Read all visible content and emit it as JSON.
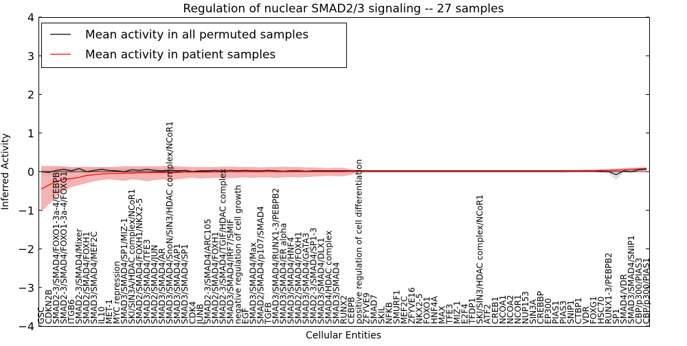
{
  "chart_data": {
    "type": "line",
    "title": "Regulation of nuclear SMAD2/3 signaling -- 27 samples",
    "xlabel": "Cellular Entities",
    "ylabel": "Inferred Activity",
    "ylim": [
      -4,
      4
    ],
    "yticks": [
      -4,
      -3,
      -2,
      -1,
      0,
      1,
      2,
      3,
      4
    ],
    "ytick_labels": [
      "−4",
      "−3",
      "−2",
      "−1",
      "0",
      "1",
      "2",
      "3",
      "4"
    ],
    "legend_position": "upper-left",
    "colors": {
      "permuted": "#000000",
      "patient": "#ff0000",
      "patient_band": "#f08080",
      "permuted_band": "#bbbbbb"
    },
    "categories": [
      "GSC",
      "CDKN2B",
      "SMAD2-3/SMAD4/FOXO1-3a-4/CEBPB",
      "SMAD2-3/SMAD4/FOXO1-3a-4/FOXG1",
      "ITGB6",
      "SMAD2-3/SMAD4/Mixer",
      "SMAD2/SMAD4/FOXH1",
      "SMAD3/SMAD4/MEF2C",
      "IL10",
      "MET-1",
      "MYC repression",
      "SMAD3/SMAD4/SP1/MIZ-1",
      "SKI/SIN3A/HDAC complex/NCoR1",
      "SMAD2/SMAD4/FOXH1/NKX2-5",
      "SMAD3/SMAD4/TFE3",
      "SMAD2/SMAD4/JUN",
      "SMAD3/SMAD4/AR",
      "SMAD3/SMAD4/SnoN/SIN3/HDAC complex/NCoR1",
      "SMAD3/SMAD4/AP1",
      "SMAD3/SMAD4/SP1",
      "CDK4",
      "JUNB",
      "SMAD2-3/SMAD4/ARC105",
      "SMAD2/SMAD4/FOXH1",
      "SMAD2-3/SMAD4/TGIF/HDAC complex",
      "SMAD3/SMAD4/IRF7/SMIF",
      "negative regulation of cell growth",
      "EGF",
      "SMAD3/SMAD4/Max",
      "SMAD2/SMAD4/p107/SMAD4",
      "TGFB",
      "SMAD3/SMAD4/RUNX1-3/PEBPB2",
      "SMAD3/SMAD4/ER alpha",
      "SMAD3/SMAD4/HNF4",
      "SMAD2/SMAD4/FOXH1",
      "SMAD3/SMAD4/GATA3",
      "SMAD2-3/SMAD4/SP1-3",
      "SMAD3/SMAD4/DLX1",
      "SMAD4/HDAC complex",
      "SMAD3/SMAD4",
      "RUNX2",
      "CEBPB",
      "positive regulation of cell differentiation",
      "ZFYVE9",
      "SMAD7",
      "SKIL",
      "NFKB",
      "SMURF1",
      "MEF2C",
      "ZFYVE16",
      "NKX2-5",
      "FOXO1",
      "HNF4A",
      "MAX",
      "TFE3",
      "MIZ-1",
      "E2F4",
      "TFDP1",
      "SKI/SIN3/HDAC complex/NCoR1",
      "ATF2",
      "CREB1",
      "NCOA1",
      "NCOA2",
      "NCOR1",
      "NUP153",
      "SIN3A",
      "CREBBP",
      "EP300",
      "PIAS1",
      "PIAS3",
      "SNIP1",
      "CTBP1",
      "VDR",
      "FOXG1",
      "HSC70",
      "RUNX1-3/PEBPB2",
      "SP1",
      "SMAD4/VDR",
      "SMAD3/SMAD4/SNIP1",
      "CBP/p300/PIAS3",
      "CBP/p300/PIAS1"
    ],
    "series": [
      {
        "name": "Mean activity in all permuted samples",
        "values": [
          0.0,
          -0.02,
          0.03,
          0.06,
          0.02,
          0.08,
          0.0,
          0.03,
          0.06,
          0.03,
          0.02,
          0.0,
          0.05,
          0.03,
          0.06,
          0.03,
          0.02,
          0.04,
          0.02,
          0.03,
          0.0,
          0.02,
          0.02,
          0.03,
          0.01,
          0.03,
          0.02,
          0.03,
          0.02,
          0.02,
          0.03,
          0.02,
          0.01,
          0.02,
          0.02,
          0.01,
          0.02,
          0.02,
          0.02,
          0.02,
          0.02,
          0.02,
          0.02,
          0.02,
          0.02,
          0.02,
          0.02,
          0.02,
          0.02,
          0.02,
          0.02,
          0.02,
          0.02,
          0.02,
          0.02,
          0.02,
          0.02,
          0.02,
          0.02,
          0.02,
          0.02,
          0.02,
          0.02,
          0.02,
          0.02,
          0.02,
          0.02,
          0.02,
          0.02,
          0.02,
          0.02,
          0.02,
          0.02,
          0.02,
          0.01,
          0.0,
          -0.08,
          0.02,
          0.0,
          0.05,
          0.06
        ]
      },
      {
        "name": "Mean activity in patient samples",
        "values": [
          -0.45,
          -0.35,
          -0.25,
          -0.2,
          -0.18,
          -0.15,
          -0.1,
          -0.08,
          -0.06,
          -0.05,
          -0.05,
          -0.04,
          -0.04,
          -0.03,
          -0.03,
          -0.02,
          -0.02,
          -0.02,
          -0.02,
          -0.01,
          -0.01,
          -0.01,
          -0.01,
          -0.01,
          0.0,
          0.0,
          0.0,
          0.0,
          0.0,
          0.0,
          0.0,
          0.0,
          0.0,
          0.0,
          0.0,
          0.0,
          0.0,
          0.0,
          0.0,
          0.0,
          0.0,
          0.01,
          0.01,
          0.01,
          0.01,
          0.01,
          0.01,
          0.01,
          0.01,
          0.01,
          0.01,
          0.01,
          0.01,
          0.01,
          0.01,
          0.01,
          0.01,
          0.01,
          0.01,
          0.01,
          0.01,
          0.01,
          0.01,
          0.01,
          0.01,
          0.01,
          0.01,
          0.01,
          0.01,
          0.01,
          0.02,
          0.02,
          0.02,
          0.02,
          0.03,
          0.03,
          0.04,
          0.05,
          0.06,
          0.07,
          0.08
        ]
      }
    ],
    "patient_band": {
      "upper": [
        0.15,
        0.15,
        0.15,
        0.14,
        0.12,
        0.12,
        0.13,
        0.12,
        0.12,
        0.12,
        0.13,
        0.14,
        0.14,
        0.14,
        0.14,
        0.14,
        0.14,
        0.15,
        0.14,
        0.13,
        0.12,
        0.12,
        0.12,
        0.12,
        0.13,
        0.13,
        0.12,
        0.12,
        0.12,
        0.11,
        0.12,
        0.12,
        0.13,
        0.12,
        0.12,
        0.11,
        0.11,
        0.1,
        0.09,
        0.1,
        0.1,
        0.06,
        0.04,
        0.04,
        0.04,
        0.04,
        0.04,
        0.04,
        0.04,
        0.04,
        0.04,
        0.04,
        0.04,
        0.04,
        0.04,
        0.04,
        0.04,
        0.04,
        0.04,
        0.04,
        0.04,
        0.04,
        0.04,
        0.04,
        0.04,
        0.04,
        0.04,
        0.04,
        0.04,
        0.04,
        0.05,
        0.05,
        0.06,
        0.06,
        0.07,
        0.07,
        0.08,
        0.09,
        0.1,
        0.11,
        0.12
      ],
      "lower": [
        -1.05,
        -0.85,
        -0.65,
        -0.5,
        -0.4,
        -0.35,
        -0.3,
        -0.25,
        -0.22,
        -0.2,
        -0.22,
        -0.24,
        -0.2,
        -0.22,
        -0.25,
        -0.22,
        -0.2,
        -0.24,
        -0.2,
        -0.18,
        -0.16,
        -0.18,
        -0.17,
        -0.16,
        -0.18,
        -0.17,
        -0.16,
        -0.15,
        -0.16,
        -0.15,
        -0.15,
        -0.16,
        -0.15,
        -0.14,
        -0.15,
        -0.14,
        -0.13,
        -0.12,
        -0.11,
        -0.12,
        -0.12,
        -0.08,
        -0.02,
        -0.02,
        -0.02,
        -0.02,
        -0.02,
        -0.02,
        -0.02,
        -0.02,
        -0.02,
        -0.02,
        -0.02,
        -0.02,
        -0.02,
        -0.02,
        -0.02,
        -0.02,
        -0.02,
        -0.02,
        -0.02,
        -0.02,
        -0.02,
        -0.02,
        -0.02,
        -0.02,
        -0.02,
        -0.02,
        -0.02,
        -0.02,
        -0.01,
        -0.01,
        -0.01,
        -0.01,
        -0.01,
        -0.01,
        -0.01,
        0.0,
        0.01,
        0.02,
        0.03
      ]
    },
    "permuted_band": {
      "upper": [
        0.06,
        0.07,
        0.1,
        0.12,
        0.09,
        0.13,
        0.07,
        0.1,
        0.12,
        0.1,
        0.09,
        0.08,
        0.1,
        0.09,
        0.11,
        0.09,
        0.08,
        0.1,
        0.08,
        0.08,
        0.06,
        0.07,
        0.07,
        0.08,
        0.06,
        0.07,
        0.07,
        0.07,
        0.06,
        0.06,
        0.07,
        0.06,
        0.05,
        0.06,
        0.06,
        0.05,
        0.05,
        0.05,
        0.05,
        0.05,
        0.05,
        0.04,
        0.03,
        0.03,
        0.03,
        0.03,
        0.03,
        0.03,
        0.03,
        0.03,
        0.03,
        0.03,
        0.03,
        0.03,
        0.03,
        0.03,
        0.03,
        0.03,
        0.03,
        0.03,
        0.03,
        0.03,
        0.03,
        0.03,
        0.03,
        0.03,
        0.03,
        0.03,
        0.03,
        0.03,
        0.03,
        0.03,
        0.04,
        0.04,
        0.05,
        0.05,
        0.02,
        0.06,
        0.06,
        0.1,
        0.1
      ],
      "lower": [
        -0.08,
        -0.1,
        -0.05,
        -0.02,
        -0.05,
        0.0,
        -0.07,
        -0.04,
        -0.01,
        -0.04,
        -0.05,
        -0.06,
        -0.03,
        -0.04,
        -0.02,
        -0.04,
        -0.05,
        -0.03,
        -0.05,
        -0.04,
        -0.06,
        -0.04,
        -0.04,
        -0.03,
        -0.05,
        -0.03,
        -0.04,
        -0.03,
        -0.03,
        -0.03,
        -0.02,
        -0.03,
        -0.03,
        -0.02,
        -0.02,
        -0.02,
        -0.01,
        -0.01,
        -0.01,
        -0.01,
        -0.01,
        0.0,
        0.01,
        0.01,
        0.01,
        0.01,
        0.01,
        0.01,
        0.01,
        0.01,
        0.01,
        0.01,
        0.01,
        0.01,
        0.01,
        0.01,
        0.01,
        0.01,
        0.01,
        0.01,
        0.01,
        0.01,
        0.01,
        0.01,
        0.01,
        0.01,
        0.01,
        0.01,
        0.01,
        0.01,
        0.01,
        0.01,
        0.0,
        0.0,
        -0.03,
        -0.06,
        -0.22,
        -0.02,
        -0.05,
        0.0,
        0.02
      ]
    }
  }
}
